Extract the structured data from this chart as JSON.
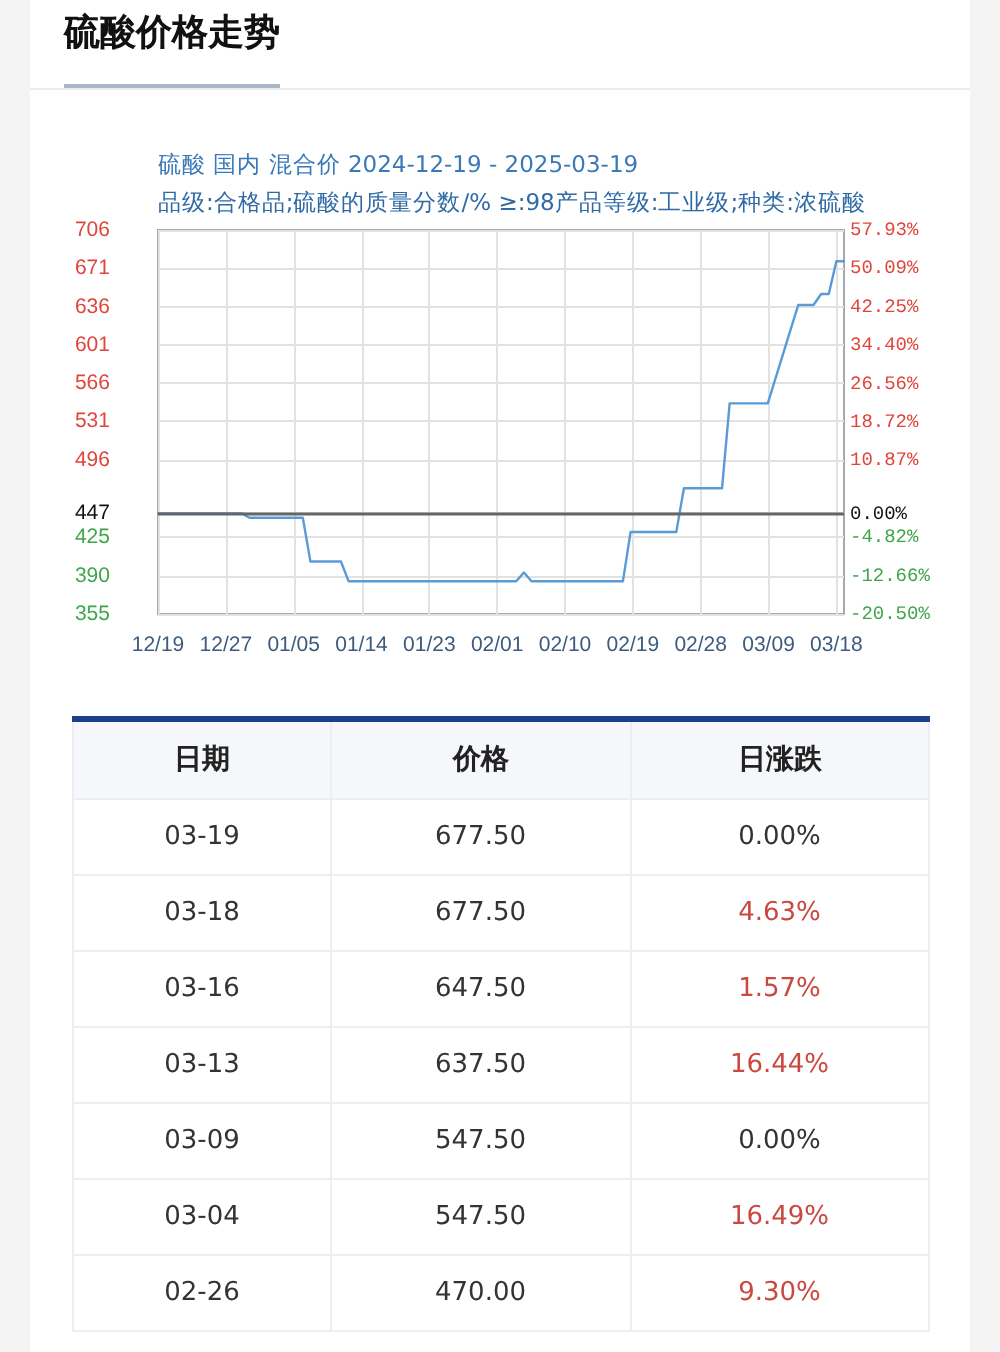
{
  "chart_data": [
    {
      "type": "line",
      "title": "硫酸价格走势",
      "subtitle": "硫酸 国内 混合价 2024-12-19 - 2025-03-19",
      "annotations": [
        "品级:合格品;硫酸的质量分数/% ≥:98产品等级:工业级;种类:浓硫酸"
      ],
      "x": [
        "2024-12-19",
        "2024-12-30",
        "2024-12-31",
        "2025-01-07",
        "2025-01-08",
        "2025-01-12",
        "2025-01-13",
        "2025-02-04",
        "2025-02-05",
        "2025-02-06",
        "2025-02-18",
        "2025-02-19",
        "2025-02-25",
        "2025-02-26",
        "2025-03-03",
        "2025-03-04",
        "2025-03-09",
        "2025-03-13",
        "2025-03-15",
        "2025-03-16",
        "2025-03-17",
        "2025-03-18",
        "2025-03-19"
      ],
      "series": [
        {
          "color": "#5b9bd5",
          "values": [
            447,
            447,
            443,
            443,
            403,
            403,
            385,
            385,
            393,
            385,
            385,
            430,
            430,
            470,
            470,
            547.5,
            547.5,
            637.5,
            637.5,
            647.5,
            647.5,
            677.5,
            677.5
          ]
        }
      ],
      "xlim": [
        "2024-12-19",
        "2025-03-19"
      ],
      "xticks": [
        {
          "value": "2024-12-19",
          "label": "12/19"
        },
        {
          "value": "2024-12-27T21:36",
          "label": "12/27"
        },
        {
          "value": "2025-01-05T19:12",
          "label": "01/05"
        },
        {
          "value": "2025-01-14T16:48",
          "label": "01/14"
        },
        {
          "value": "2025-01-23T14:24",
          "label": "01/23"
        },
        {
          "value": "2025-02-01T12:00",
          "label": "02/01"
        },
        {
          "value": "2025-02-10T09:36",
          "label": "02/10"
        },
        {
          "value": "2025-02-19T07:12",
          "label": "02/19"
        },
        {
          "value": "2025-02-28T04:48",
          "label": "02/28"
        },
        {
          "value": "2025-03-09T02:24",
          "label": "03/09"
        },
        {
          "value": "2025-03-18",
          "label": "03/18"
        }
      ],
      "ylim": [
        355,
        706
      ],
      "yticks": [
        355,
        390,
        425,
        447,
        496,
        531,
        566,
        601,
        636,
        671,
        706
      ],
      "y2lim": [
        -20.5,
        57.93
      ],
      "y2ticks": [
        {
          "value": -20.5,
          "label": "-20.50%"
        },
        {
          "value": -12.66,
          "label": "-12.66%"
        },
        {
          "value": -4.82,
          "label": "-4.82%"
        },
        {
          "value": 0,
          "label": "0.00%"
        },
        {
          "value": 10.87,
          "label": "10.87%"
        },
        {
          "value": 18.72,
          "label": "18.72%"
        },
        {
          "value": 26.56,
          "label": "26.56%"
        },
        {
          "value": 34.4,
          "label": "34.40%"
        },
        {
          "value": 42.25,
          "label": "42.25%"
        },
        {
          "value": 50.09,
          "label": "50.09%"
        },
        {
          "value": 57.93,
          "label": "57.93%"
        }
      ],
      "grid": true,
      "ref_lines": [
        {
          "axis": "y",
          "value": 447,
          "color": "#666666"
        }
      ]
    },
    {
      "type": "other",
      "xlabel": "日期",
      "categories": [
        "03-19",
        "03-18",
        "03-16",
        "03-13",
        "03-09",
        "03-04",
        "02-26"
      ],
      "series": [
        {
          "name": "价格",
          "color": "#333333",
          "values": [
            677.5,
            677.5,
            647.5,
            637.5,
            547.5,
            547.5,
            470
          ],
          "value_labels": [
            "677.50",
            "677.50",
            "647.50",
            "637.50",
            "547.50",
            "547.50",
            "470.00"
          ]
        },
        {
          "name": "日涨跌",
          "colors": [
            "#333333",
            "#c9483f",
            "#c9483f",
            "#c9483f",
            "#333333",
            "#c9483f",
            "#c9483f"
          ],
          "values": [
            0,
            4.63,
            1.57,
            16.44,
            0,
            16.49,
            9.3
          ],
          "value_labels": [
            "0.00%",
            "4.63%",
            "1.57%",
            "16.44%",
            "0.00%",
            "16.49%",
            "9.30%"
          ]
        }
      ]
    }
  ]
}
